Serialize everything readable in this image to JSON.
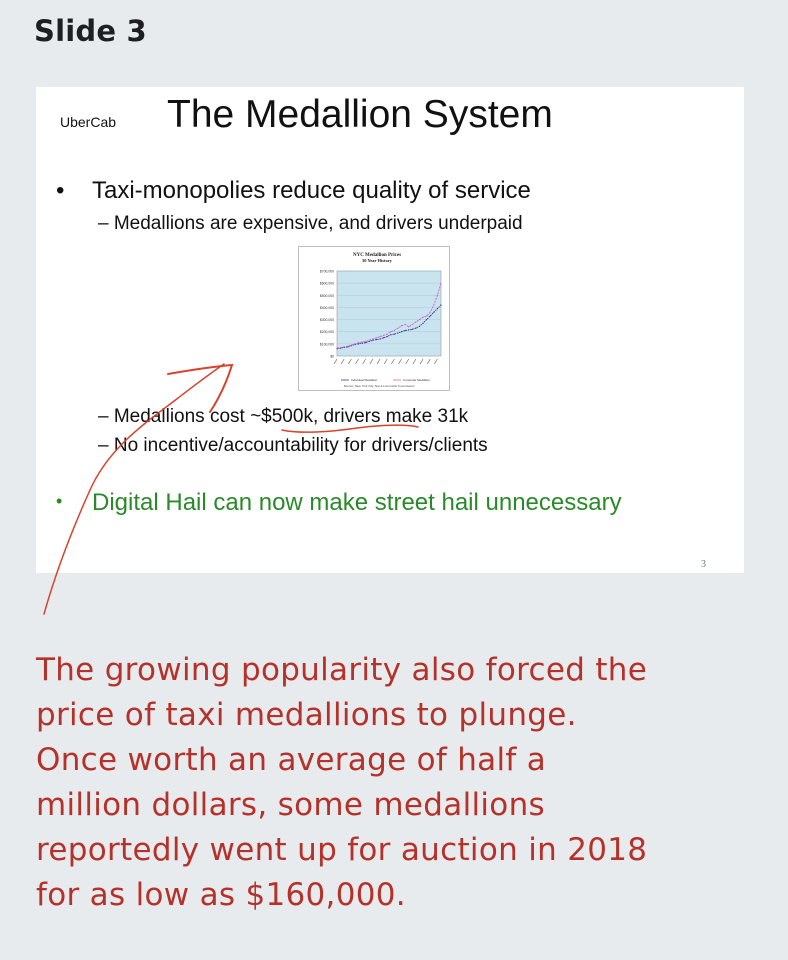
{
  "post": {
    "heading": "Slide 3"
  },
  "slide": {
    "logo": "UberCab",
    "title": "The Medallion System",
    "bullet1": "Taxi-monopolies reduce quality of service",
    "sub1": "– Medallions are expensive, and drivers underpaid",
    "sub2": "– Medallions cost ~$500k, drivers make 31k",
    "sub3": "– No incentive/accountability for drivers/clients",
    "bullet2": "Digital Hail can now make street hail unnecessary",
    "page_number": "3",
    "bullet_color": "#2a8a2a"
  },
  "chart_data": {
    "type": "line",
    "title": "NYC Medallion Prices",
    "subtitle": "30 Year History",
    "y_ticks": [
      "$700,000",
      "$600,000",
      "$500,000",
      "$400,000",
      "$300,000",
      "$200,000",
      "$100,000",
      "$0"
    ],
    "ylim": [
      0,
      700000
    ],
    "x": [
      1,
      2,
      3,
      4,
      5,
      6,
      7,
      8,
      9,
      10,
      11,
      12,
      13,
      14,
      15,
      16,
      17,
      18,
      19,
      20,
      21,
      22,
      23,
      24,
      25,
      26,
      27,
      28,
      29,
      30
    ],
    "series": [
      {
        "name": "Individual Medallion",
        "values": [
          60000,
          65000,
          70000,
          75000,
          85000,
          95000,
          100000,
          105000,
          110000,
          120000,
          130000,
          135000,
          140000,
          150000,
          160000,
          175000,
          180000,
          190000,
          200000,
          210000,
          215000,
          220000,
          230000,
          245000,
          270000,
          300000,
          330000,
          360000,
          390000,
          420000
        ]
      },
      {
        "name": "Corporate Medallion",
        "values": [
          65000,
          70000,
          75000,
          80000,
          90000,
          100000,
          110000,
          115000,
          120000,
          130000,
          140000,
          150000,
          160000,
          170000,
          180000,
          200000,
          210000,
          230000,
          250000,
          260000,
          240000,
          260000,
          280000,
          300000,
          320000,
          330000,
          360000,
          420000,
          500000,
          600000
        ]
      }
    ],
    "source_note": "Source: New York City Taxi & Limousine Commission",
    "series_colors": [
      "#3a3a8a",
      "#cc66cc"
    ],
    "plot_bg": "#c9e4ef"
  },
  "caption": {
    "lines": [
      "The growing popularity also forced the",
      "price of taxi medallions to plunge.",
      "Once worth an average of half a",
      "million dollars, some medallions",
      "reportedly went up for auction in 2018",
      "for as low as $160,000."
    ],
    "color": "#b5322a"
  }
}
